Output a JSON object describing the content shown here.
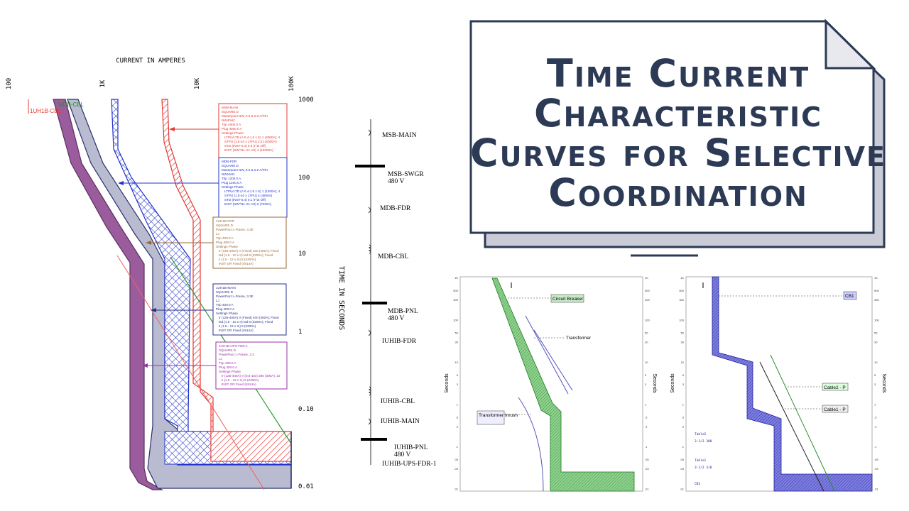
{
  "main_plot": {
    "x_axis_label": "CURRENT IN AMPERES",
    "x_ticks": [
      "100",
      "1K",
      "10K",
      "100K"
    ],
    "y_axis_label": "TIME IN SECONDS",
    "y_ticks": [
      "1000",
      "100",
      "10",
      "1",
      "0.10",
      "0.01"
    ],
    "curve_labels": [
      "1UH1B-CBL",
      "MDB-CBL"
    ],
    "callouts": [
      {
        "lines": [
          "MSB-MAIN",
          "SQUARE D",
          "Masterpact NW, 5.0 & 6.0 A/P/H",
          "NW40H2",
          "Trip 4000.0 A",
          "Plug 4000.0 A",
          "Settings Phase",
          "LTPU/LTD (A 0.4-1.0 x S) 1 (4000A); 4",
          "STPU (1.5-10 x LTPU) 2.5 (10000A)",
          "STD (INST-0.4) 0.3 (I^2t Off)",
          "INST (NW^N1 H1 H2) 4 (16000A)"
        ]
      },
      {
        "lines": [
          "MDB-FDR",
          "SQUARE D",
          "Masterpact NW, 5.0 & 6.0 A/P/H",
          "NW16H1",
          "Trip 1200.0 A",
          "Plug 1200.0 A",
          "Settings Phase",
          "LTPU/LTD (A 0.4-1.0 x S) 1 (1200A); 4",
          "STPU (1.5-10 x LTPU) 4 (4800A)",
          "STD (INST-0.4) 0.1 (I^2t Off)",
          "INST (NW^N1 H1 H2) 6 (7200A)"
        ]
      },
      {
        "lines": [
          "1UH1B-FDR",
          "SQUARE D",
          "PowerPact L-Frame, 3.3E",
          "LJ",
          "Trip 400.0 A",
          "Plug 400.0 A",
          "Settings Phase",
          "Ir (125-400A) Ir (Fixed) 400 (400A); Fixed",
          "tsd (1.5 - 10 x Ir) tsd 8 (3200A); Fixed",
          "Ii (1.5 - 12 x In) 8 (3200A)",
          "INST OR Fixed (4914A)"
        ]
      },
      {
        "lines": [
          "1UH1B-MAIN",
          "SQUARE D",
          "PowerPact L-Frame, 3.3E",
          "LJ",
          "Trip 400.0 A",
          "Plug 400.0 A",
          "Settings Phase",
          "Ir (125-400A) Ir (Fixed) 400 (400A); Fixed",
          "tsd (1.5 - 10 x Ir) tsd 8 (3200A); Fixed",
          "Ii (1.5 - 12 x In) 8 (3200A)",
          "INST OR Fixed (4914A)"
        ]
      },
      {
        "lines": [
          "1UH1B-UPS-FDR-1",
          "SQUARE D",
          "PowerPact L-Frame, 3.3",
          "LJ",
          "Trip 400.0 A",
          "Plug 400.0 A",
          "Settings Phase",
          "Ir (125-400A) Ir (0.5-10x) 300 (300A); 10",
          "Ii (1.5 - 12 x In) 8 (2400A)",
          "INST OR Fixed (4914A)"
        ]
      }
    ]
  },
  "one_line": {
    "labels": [
      "MSB-MAIN",
      "MSB-SWGR",
      "480 V",
      "MDB-FDR",
      "MDB-CBL",
      "MDB-PNL",
      "480 V",
      "IUHIB-FDR",
      "IUHIB-CBL",
      "IUHIB-MAIN",
      "IUHIB-PNL",
      "480 V",
      "IUHIB-UPS-FDR-1"
    ]
  },
  "title": {
    "lines": [
      "Time Current",
      "Characteristic",
      "Curves for Selective",
      "Coordination"
    ]
  },
  "chart_a": {
    "ticks": [
      "1K",
      "500",
      "300",
      "100",
      "50",
      "30",
      "10",
      "5",
      "3",
      "1",
      ".5",
      ".3",
      ".1",
      ".05",
      ".03",
      ".01"
    ],
    "axis_label": "Seconds",
    "labels": [
      "Circuit Breaker",
      "Transformer",
      "Transformer Inrush"
    ]
  },
  "chart_b": {
    "ticks": [
      "1K",
      "500",
      "300",
      "100",
      "50",
      "30",
      "10",
      "5",
      "3",
      "1",
      ".5",
      ".3",
      ".1",
      ".05",
      ".03",
      ".01"
    ],
    "axis_label": "Seconds",
    "labels": [
      "CB1",
      "Cable2 - P",
      "Cable1 - P"
    ],
    "notes": [
      "Table2",
      "3-1/2 300",
      "Table1",
      "3-1/2 3/0",
      "CB1"
    ]
  }
}
